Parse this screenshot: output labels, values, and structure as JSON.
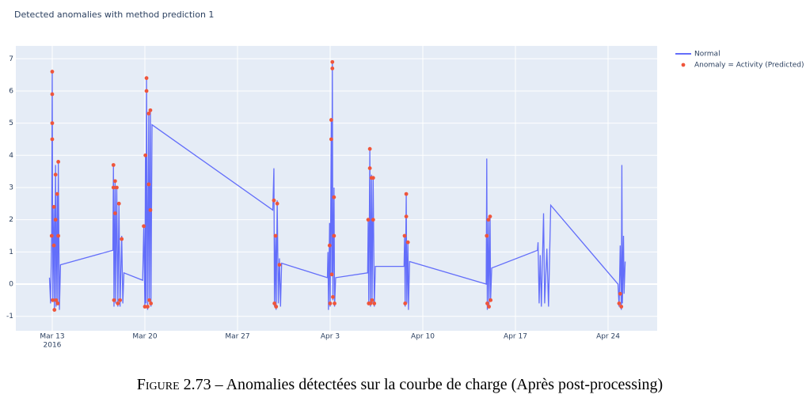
{
  "chart_data": {
    "type": "line",
    "title": "Detected anomalies with method prediction 1",
    "xlim": [
      "2016-03-10T06:00",
      "2016-04-27T17:00"
    ],
    "xticks": [
      {
        "value": "2016-03-13T00:00",
        "label": "Mar 13",
        "sublabel": "2016"
      },
      {
        "value": "2016-03-20T00:00",
        "label": "Mar 20"
      },
      {
        "value": "2016-03-27T00:00",
        "label": "Mar 27"
      },
      {
        "value": "2016-04-03T00:00",
        "label": "Apr 3"
      },
      {
        "value": "2016-04-10T00:00",
        "label": "Apr 10"
      },
      {
        "value": "2016-04-17T00:00",
        "label": "Apr 17"
      },
      {
        "value": "2016-04-24T00:00",
        "label": "Apr 24"
      }
    ],
    "ylim": [
      -1.45,
      7.4
    ],
    "yticks": [
      -1,
      0,
      1,
      2,
      3,
      4,
      5,
      6,
      7
    ],
    "grid": true,
    "series": [
      {
        "name": "Normal",
        "mode": "line",
        "color": "#636efa",
        "x": [
          "2016-03-12T19:00",
          "2016-03-12T21:00",
          "2016-03-12T23:00",
          "2016-03-13T00:00",
          "2016-03-13T01:00",
          "2016-03-13T03:00",
          "2016-03-13T04:00",
          "2016-03-13T06:00",
          "2016-03-13T07:00",
          "2016-03-13T09:00",
          "2016-03-13T10:00",
          "2016-03-13T11:00",
          "2016-03-13T13:00",
          "2016-03-13T15:00",
          "2016-03-17T14:00",
          "2016-03-17T15:00",
          "2016-03-17T16:00",
          "2016-03-17T18:00",
          "2016-03-17T19:00",
          "2016-03-17T21:00",
          "2016-03-17T23:00",
          "2016-03-18T01:00",
          "2016-03-18T03:00",
          "2016-03-18T06:00",
          "2016-03-18T08:00",
          "2016-03-18T10:00",
          "2016-03-19T20:00",
          "2016-03-19T22:00",
          "2016-03-20T00:00",
          "2016-03-20T01:00",
          "2016-03-20T02:00",
          "2016-03-20T03:00",
          "2016-03-20T05:00",
          "2016-03-20T07:00",
          "2016-03-20T08:00",
          "2016-03-20T10:00",
          "2016-03-20T11:00",
          "2016-03-20T13:00",
          "2016-03-29T16:00",
          "2016-03-29T18:00",
          "2016-03-29T19:00",
          "2016-03-29T21:00",
          "2016-03-29T22:00",
          "2016-03-30T00:00",
          "2016-03-30T02:00",
          "2016-03-30T04:00",
          "2016-03-30T06:00",
          "2016-03-30T08:00",
          "2016-04-02T19:00",
          "2016-04-02T20:00",
          "2016-04-02T21:00",
          "2016-04-02T23:00",
          "2016-04-03T00:00",
          "2016-04-03T02:00",
          "2016-04-03T03:00",
          "2016-04-03T04:00",
          "2016-04-03T05:00",
          "2016-04-03T07:00",
          "2016-04-03T08:00",
          "2016-04-03T10:00",
          "2016-04-05T20:00",
          "2016-04-05T21:00",
          "2016-04-05T22:00",
          "2016-04-06T00:00",
          "2016-04-06T01:00",
          "2016-04-06T03:00",
          "2016-04-06T04:00",
          "2016-04-06T06:00",
          "2016-04-06T08:00",
          "2016-04-06T10:00",
          "2016-04-08T14:00",
          "2016-04-08T15:00",
          "2016-04-08T16:00",
          "2016-04-08T18:00",
          "2016-04-08T19:00",
          "2016-04-08T21:00",
          "2016-04-08T22:00",
          "2016-04-09T00:00",
          "2016-04-14T19:00",
          "2016-04-14T20:00",
          "2016-04-14T21:00",
          "2016-04-14T23:00",
          "2016-04-15T00:00",
          "2016-04-15T02:00",
          "2016-04-15T03:00",
          "2016-04-15T05:00",
          "2016-04-18T16:00",
          "2016-04-18T17:00",
          "2016-04-18T19:00",
          "2016-04-18T21:00",
          "2016-04-18T23:00",
          "2016-04-19T03:00",
          "2016-04-19T05:00",
          "2016-04-19T09:00",
          "2016-04-19T12:00",
          "2016-04-19T16:00",
          "2016-04-24T18:00",
          "2016-04-24T20:00",
          "2016-04-24T22:00",
          "2016-04-25T00:00",
          "2016-04-25T01:00",
          "2016-04-25T02:00",
          "2016-04-25T04:00",
          "2016-04-25T05:00",
          "2016-04-25T07:00"
        ],
        "values": [
          0.2,
          -0.6,
          1.5,
          6.6,
          -0.5,
          2.4,
          -0.8,
          3.7,
          -0.7,
          2.8,
          -0.6,
          3.8,
          -0.8,
          0.6,
          1.05,
          3.7,
          -0.7,
          3.2,
          -0.6,
          3.0,
          -0.7,
          2.5,
          -0.7,
          1.5,
          -0.6,
          0.35,
          0.12,
          1.8,
          -0.7,
          4.0,
          -0.6,
          6.4,
          -0.8,
          5.3,
          -0.5,
          5.4,
          -0.7,
          4.95,
          2.3,
          3.6,
          -0.7,
          1.5,
          -0.8,
          2.6,
          -0.6,
          0.8,
          -0.7,
          0.65,
          0.2,
          1.0,
          -0.8,
          1.9,
          -0.7,
          5.1,
          0.3,
          6.9,
          -0.5,
          3.0,
          -0.7,
          0.2,
          0.35,
          2.0,
          -0.6,
          4.2,
          -0.7,
          3.4,
          -0.6,
          3.3,
          -0.7,
          0.55,
          0.55,
          1.5,
          -0.7,
          2.8,
          -0.6,
          1.3,
          -0.8,
          0.7,
          0.0,
          3.9,
          -0.8,
          2.0,
          -0.7,
          2.1,
          -0.5,
          0.5,
          1.05,
          1.3,
          -0.6,
          0.9,
          -0.7,
          2.2,
          -0.6,
          1.1,
          -0.7,
          2.45,
          0.0,
          -0.7,
          1.2,
          -0.8,
          3.7,
          -0.6,
          1.5,
          -0.3,
          0.7
        ]
      },
      {
        "name": "Anomaly = Activity (Predicted)",
        "mode": "markers",
        "color": "#ef553b",
        "x": [
          "2016-03-12T23:00",
          "2016-03-13T00:00",
          "2016-03-13T00:00",
          "2016-03-13T00:00",
          "2016-03-13T00:00",
          "2016-03-13T01:00",
          "2016-03-13T03:00",
          "2016-03-13T03:00",
          "2016-03-13T04:00",
          "2016-03-13T06:00",
          "2016-03-13T06:00",
          "2016-03-13T07:00",
          "2016-03-13T09:00",
          "2016-03-13T10:00",
          "2016-03-13T11:00",
          "2016-03-13T11:00",
          "2016-03-17T15:00",
          "2016-03-17T15:00",
          "2016-03-17T16:00",
          "2016-03-17T18:00",
          "2016-03-17T18:00",
          "2016-03-17T21:00",
          "2016-03-17T23:00",
          "2016-03-18T01:00",
          "2016-03-18T03:00",
          "2016-03-18T06:00",
          "2016-03-19T22:00",
          "2016-03-20T00:00",
          "2016-03-20T01:00",
          "2016-03-20T03:00",
          "2016-03-20T03:00",
          "2016-03-20T05:00",
          "2016-03-20T07:00",
          "2016-03-20T07:00",
          "2016-03-20T08:00",
          "2016-03-20T10:00",
          "2016-03-20T10:00",
          "2016-03-20T11:00",
          "2016-03-29T18:00",
          "2016-03-29T19:00",
          "2016-03-29T21:00",
          "2016-03-29T22:00",
          "2016-03-30T00:00",
          "2016-03-30T04:00",
          "2016-04-02T23:00",
          "2016-04-03T00:00",
          "2016-04-03T02:00",
          "2016-04-03T02:00",
          "2016-04-03T03:00",
          "2016-04-03T04:00",
          "2016-04-03T04:00",
          "2016-04-03T05:00",
          "2016-04-03T07:00",
          "2016-04-03T07:00",
          "2016-04-03T08:00",
          "2016-04-05T21:00",
          "2016-04-05T22:00",
          "2016-04-06T00:00",
          "2016-04-06T00:00",
          "2016-04-06T01:00",
          "2016-04-06T03:00",
          "2016-04-06T04:00",
          "2016-04-06T06:00",
          "2016-04-06T06:00",
          "2016-04-06T08:00",
          "2016-04-08T15:00",
          "2016-04-08T16:00",
          "2016-04-08T18:00",
          "2016-04-08T18:00",
          "2016-04-08T21:00",
          "2016-04-14T20:00",
          "2016-04-14T21:00",
          "2016-04-14T23:00",
          "2016-04-15T00:00",
          "2016-04-15T02:00",
          "2016-04-15T03:00",
          "2016-04-24T20:00",
          "2016-04-24T22:00",
          "2016-04-25T00:00"
        ],
        "values": [
          1.5,
          6.6,
          5.9,
          5.0,
          4.5,
          -0.5,
          2.4,
          1.2,
          -0.8,
          3.4,
          2.0,
          -0.5,
          2.8,
          -0.6,
          3.8,
          1.5,
          3.7,
          3.0,
          -0.5,
          3.2,
          2.2,
          3.0,
          -0.6,
          2.5,
          -0.5,
          1.4,
          1.8,
          -0.7,
          4.0,
          6.4,
          6.0,
          -0.7,
          5.3,
          3.1,
          -0.5,
          5.4,
          2.3,
          -0.6,
          2.6,
          -0.6,
          1.5,
          -0.7,
          2.5,
          0.6,
          1.2,
          -0.6,
          5.1,
          4.5,
          0.3,
          6.9,
          6.7,
          -0.4,
          2.7,
          1.5,
          -0.6,
          2.0,
          -0.6,
          4.2,
          3.6,
          -0.6,
          3.3,
          -0.5,
          3.3,
          2.0,
          -0.6,
          1.5,
          -0.6,
          2.8,
          2.1,
          1.3,
          1.5,
          -0.6,
          2.0,
          -0.7,
          2.1,
          -0.5,
          -0.6,
          -0.3,
          -0.7
        ]
      }
    ],
    "caption": {
      "label": "Figure 2.73",
      "text": "– Anomalies détectées sur la courbe de charge (Après post-processing)"
    }
  }
}
